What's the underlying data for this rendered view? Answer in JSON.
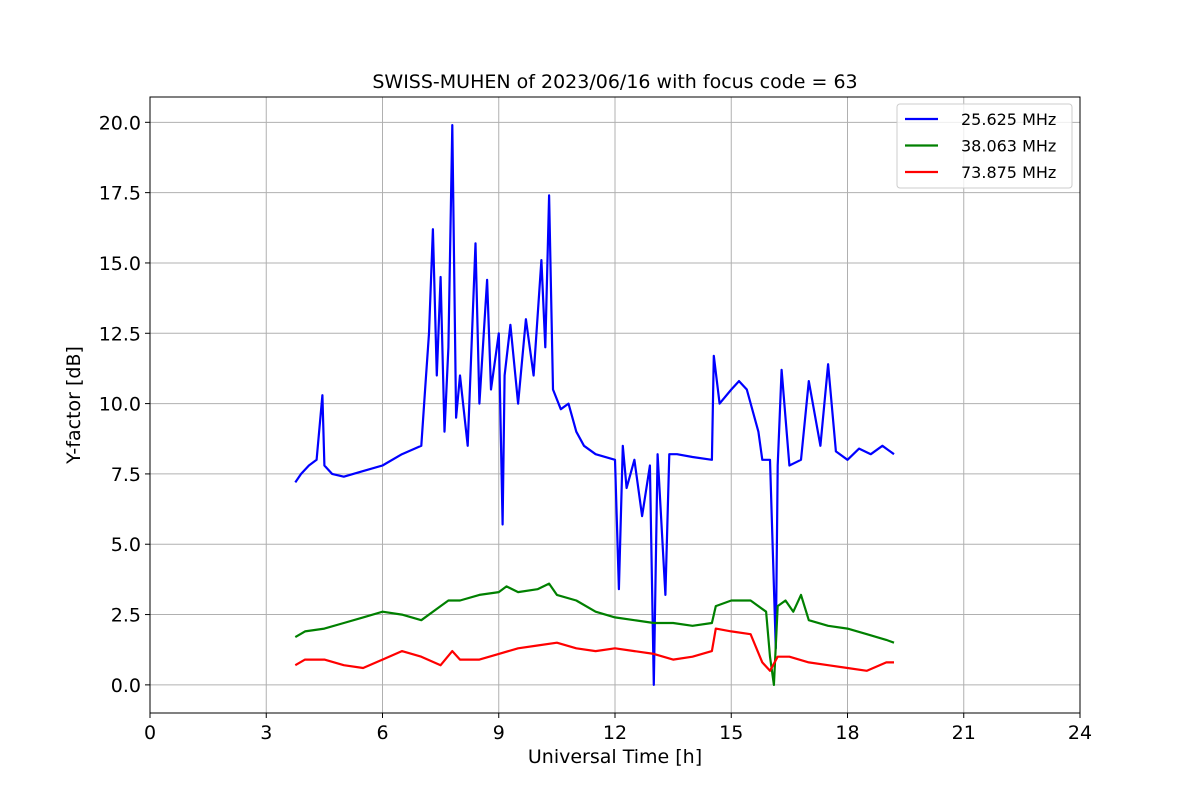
{
  "chart_data": {
    "type": "line",
    "title": "SWISS-MUHEN of 2023/06/16 with focus code = 63",
    "xlabel": "Universal Time [h]",
    "ylabel": "Y-factor [dB]",
    "xlim": [
      0,
      24
    ],
    "ylim": [
      -1.0,
      20.9
    ],
    "xticks": [
      0,
      3,
      6,
      9,
      12,
      15,
      18,
      21,
      24
    ],
    "xtick_labels": [
      "0",
      "3",
      "6",
      "9",
      "12",
      "15",
      "18",
      "21",
      "24"
    ],
    "yticks": [
      0,
      2.5,
      5,
      7.5,
      10,
      12.5,
      15,
      17.5,
      20
    ],
    "ytick_labels": [
      "0.0",
      "2.5",
      "5.0",
      "7.5",
      "10.0",
      "12.5",
      "15.0",
      "17.5",
      "20.0"
    ],
    "grid": true,
    "legend_position": "top-right",
    "series": [
      {
        "name": "25.625 MHz",
        "color": "#0000ff",
        "x": [
          3.75,
          3.9,
          4.1,
          4.3,
          4.45,
          4.5,
          4.7,
          5.0,
          5.5,
          6.0,
          6.5,
          7.0,
          7.1,
          7.2,
          7.3,
          7.4,
          7.5,
          7.6,
          7.7,
          7.8,
          7.9,
          8.0,
          8.2,
          8.4,
          8.5,
          8.7,
          8.8,
          9.0,
          9.1,
          9.15,
          9.3,
          9.5,
          9.7,
          9.9,
          10.1,
          10.2,
          10.3,
          10.4,
          10.6,
          10.8,
          11.0,
          11.2,
          11.5,
          12.0,
          12.1,
          12.2,
          12.3,
          12.5,
          12.7,
          12.9,
          13.0,
          13.1,
          13.3,
          13.4,
          13.6,
          14.0,
          14.5,
          14.55,
          14.7,
          15.0,
          15.2,
          15.4,
          15.7,
          15.8,
          16.0,
          16.15,
          16.2,
          16.3,
          16.5,
          16.8,
          17.0,
          17.3,
          17.5,
          17.7,
          18.0,
          18.3,
          18.6,
          18.9,
          19.2
        ],
        "values": [
          7.2,
          7.5,
          7.8,
          8.0,
          10.3,
          7.8,
          7.5,
          7.4,
          7.6,
          7.8,
          8.2,
          8.5,
          10.5,
          12.5,
          16.2,
          11.0,
          14.5,
          9.0,
          12.0,
          19.9,
          9.5,
          11.0,
          8.5,
          15.7,
          10.0,
          14.4,
          10.5,
          12.5,
          5.7,
          11.0,
          12.8,
          10.0,
          13.0,
          11.0,
          15.1,
          12.0,
          17.4,
          10.5,
          9.8,
          10.0,
          9.0,
          8.5,
          8.2,
          8.0,
          3.4,
          8.5,
          7.0,
          8.0,
          6.0,
          7.8,
          0.0,
          8.2,
          3.2,
          8.2,
          8.2,
          8.1,
          8.0,
          11.7,
          10.0,
          10.5,
          10.8,
          10.5,
          9.0,
          8.0,
          8.0,
          1.3,
          7.8,
          11.2,
          7.8,
          8.0,
          10.8,
          8.5,
          11.4,
          8.3,
          8.0,
          8.4,
          8.2,
          8.5,
          8.2
        ]
      },
      {
        "name": "38.063 MHz",
        "color": "#008000",
        "x": [
          3.75,
          4.0,
          4.5,
          5.0,
          5.5,
          6.0,
          6.5,
          7.0,
          7.5,
          7.7,
          8.0,
          8.5,
          9.0,
          9.2,
          9.5,
          10.0,
          10.3,
          10.5,
          11.0,
          11.5,
          12.0,
          12.5,
          13.0,
          13.5,
          14.0,
          14.5,
          14.6,
          15.0,
          15.5,
          15.9,
          16.0,
          16.1,
          16.2,
          16.4,
          16.6,
          16.8,
          17.0,
          17.5,
          18.0,
          18.5,
          19.0,
          19.2
        ],
        "values": [
          1.7,
          1.9,
          2.0,
          2.2,
          2.4,
          2.6,
          2.5,
          2.3,
          2.8,
          3.0,
          3.0,
          3.2,
          3.3,
          3.5,
          3.3,
          3.4,
          3.6,
          3.2,
          3.0,
          2.6,
          2.4,
          2.3,
          2.2,
          2.2,
          2.1,
          2.2,
          2.8,
          3.0,
          3.0,
          2.6,
          1.0,
          0.0,
          2.8,
          3.0,
          2.6,
          3.2,
          2.3,
          2.1,
          2.0,
          1.8,
          1.6,
          1.5
        ]
      },
      {
        "name": "73.875 MHz",
        "color": "#ff0000",
        "x": [
          3.75,
          4.0,
          4.5,
          5.0,
          5.5,
          6.0,
          6.5,
          7.0,
          7.5,
          7.8,
          8.0,
          8.5,
          9.0,
          9.5,
          10.0,
          10.5,
          11.0,
          11.5,
          12.0,
          12.5,
          13.0,
          13.5,
          14.0,
          14.5,
          14.6,
          15.0,
          15.5,
          15.8,
          16.0,
          16.2,
          16.5,
          17.0,
          17.5,
          18.0,
          18.5,
          19.0,
          19.2
        ],
        "values": [
          0.7,
          0.9,
          0.9,
          0.7,
          0.6,
          0.9,
          1.2,
          1.0,
          0.7,
          1.2,
          0.9,
          0.9,
          1.1,
          1.3,
          1.4,
          1.5,
          1.3,
          1.2,
          1.3,
          1.2,
          1.1,
          0.9,
          1.0,
          1.2,
          2.0,
          1.9,
          1.8,
          0.8,
          0.5,
          1.0,
          1.0,
          0.8,
          0.7,
          0.6,
          0.5,
          0.8,
          0.8
        ]
      }
    ]
  }
}
